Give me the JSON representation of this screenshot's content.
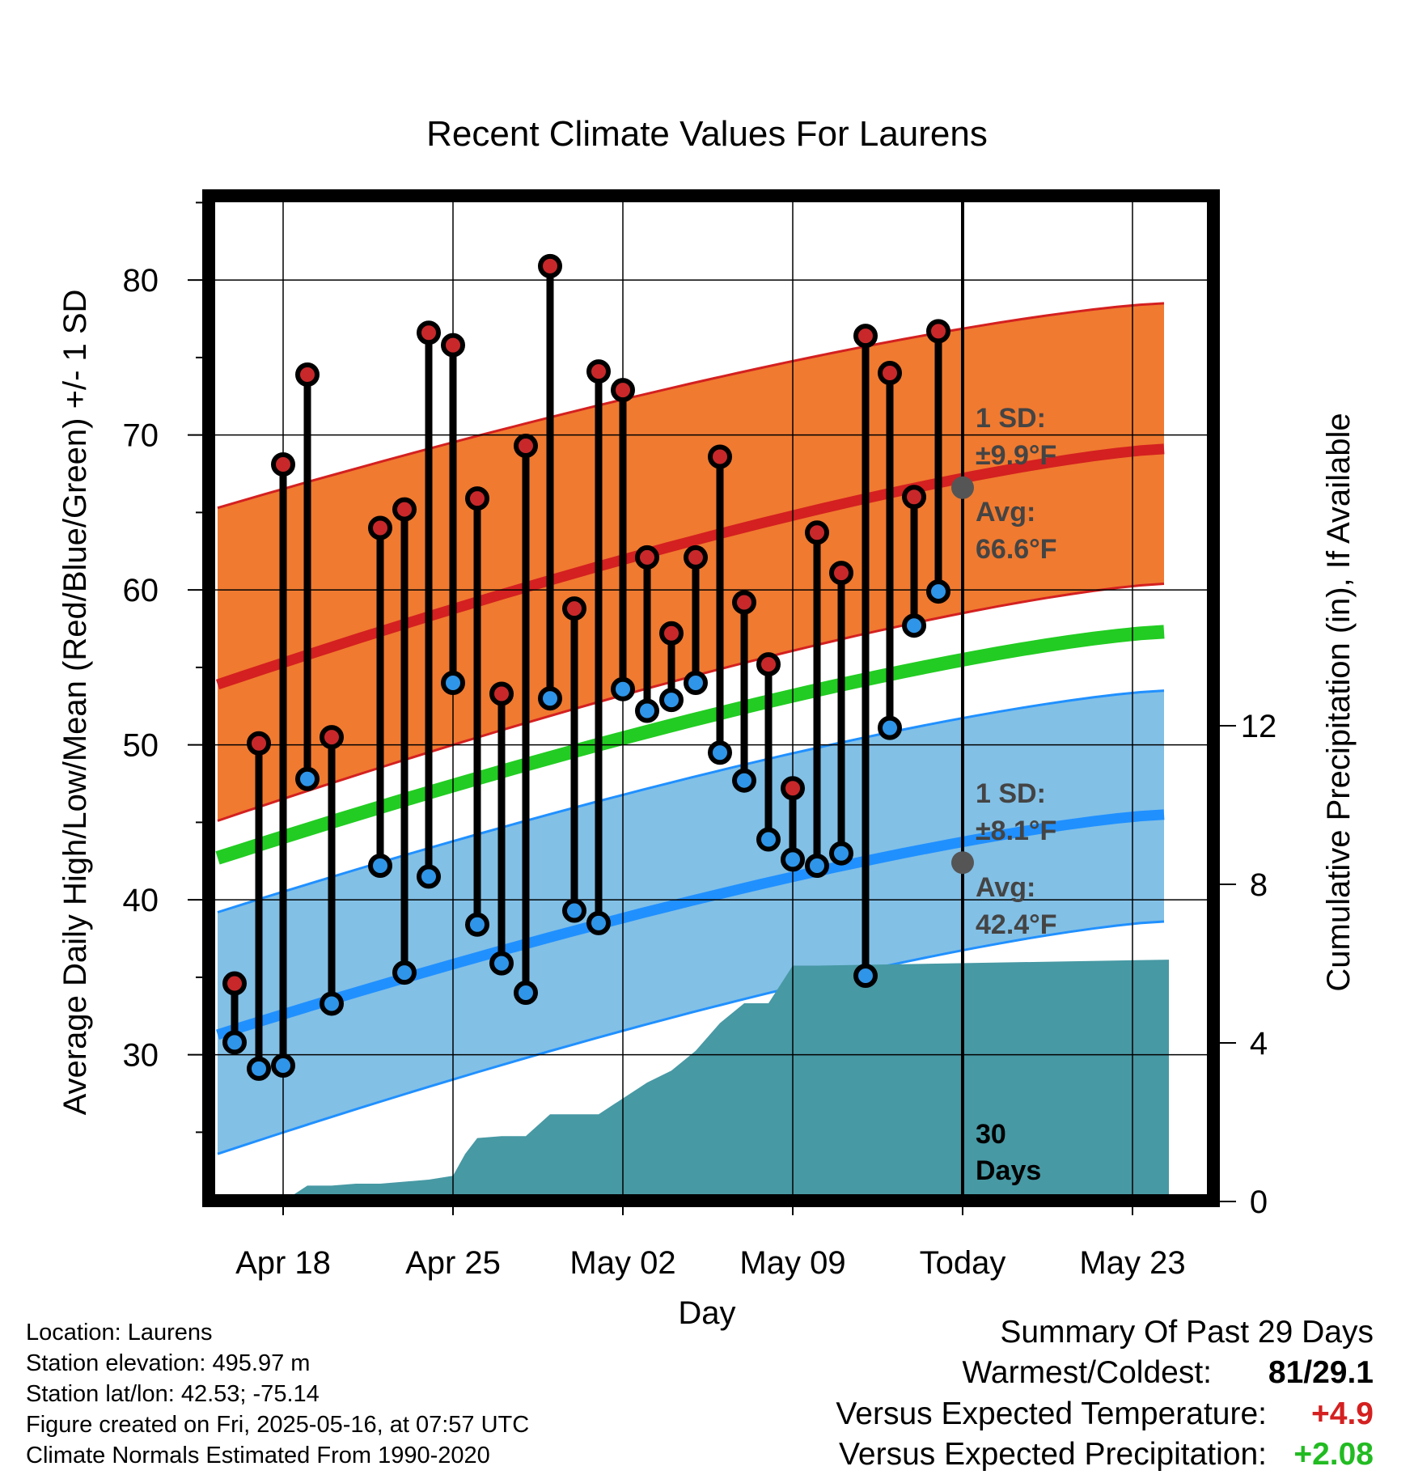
{
  "chart_data": {
    "type": "line",
    "title": "Recent Climate Values For Laurens",
    "xlabel": "Day",
    "ylabel": "Average Daily High/Low/Mean (Red/Blue/Green) +/- 1 SD",
    "y2label": "Cumulative Precipitation (in), If Available",
    "xlim": [
      -4.5,
      36.5
    ],
    "ylim": [
      21,
      85
    ],
    "y2lim": [
      -0.3,
      25
    ],
    "x_ticks": [
      {
        "x": 0,
        "label": "Apr 18"
      },
      {
        "x": 7,
        "label": "Apr 25"
      },
      {
        "x": 14,
        "label": "May 02"
      },
      {
        "x": 21,
        "label": "May 09"
      },
      {
        "x": 28,
        "label": "Today"
      },
      {
        "x": 35,
        "label": "May 23"
      }
    ],
    "y_ticks": [
      30,
      40,
      50,
      60,
      70,
      80
    ],
    "y2_ticks": [
      0,
      4,
      8,
      12
    ],
    "grid": true,
    "normals": {
      "x": [
        -2.7,
        36.3
      ],
      "high_avg": [
        53.9,
        69.1
      ],
      "high_upper": [
        65.3,
        78.5
      ],
      "high_lower": [
        45.1,
        60.4
      ],
      "mean": [
        42.7,
        57.3
      ],
      "low_avg": [
        31.3,
        45.5
      ],
      "low_upper": [
        39.2,
        53.5
      ],
      "low_lower": [
        23.6,
        38.6
      ]
    },
    "daily": [
      {
        "x": -2,
        "high": 34.6,
        "low": 30.8
      },
      {
        "x": -1,
        "high": 50.1,
        "low": 29.1
      },
      {
        "x": 0,
        "high": 68.1,
        "low": 29.3
      },
      {
        "x": 1,
        "high": 73.9,
        "low": 47.8
      },
      {
        "x": 2,
        "high": 50.5,
        "low": 33.3
      },
      {
        "x": 4,
        "high": 64.0,
        "low": 42.2
      },
      {
        "x": 5,
        "high": 65.2,
        "low": 35.3
      },
      {
        "x": 6,
        "high": 76.6,
        "low": 41.5
      },
      {
        "x": 7,
        "high": 75.8,
        "low": 54.0
      },
      {
        "x": 8,
        "high": 65.9,
        "low": 38.4
      },
      {
        "x": 9,
        "high": 53.3,
        "low": 35.9
      },
      {
        "x": 10,
        "high": 69.3,
        "low": 34.0
      },
      {
        "x": 11,
        "high": 80.9,
        "low": 53.0
      },
      {
        "x": 12,
        "high": 58.8,
        "low": 39.3
      },
      {
        "x": 13,
        "high": 74.1,
        "low": 38.5
      },
      {
        "x": 14,
        "high": 72.9,
        "low": 53.6
      },
      {
        "x": 15,
        "high": 62.1,
        "low": 52.2
      },
      {
        "x": 16,
        "high": 57.2,
        "low": 52.9
      },
      {
        "x": 17,
        "high": 62.1,
        "low": 54.0
      },
      {
        "x": 18,
        "high": 68.6,
        "low": 49.5
      },
      {
        "x": 19,
        "high": 59.2,
        "low": 47.7
      },
      {
        "x": 20,
        "high": 55.2,
        "low": 43.9
      },
      {
        "x": 21,
        "high": 47.2,
        "low": 42.6
      },
      {
        "x": 22,
        "high": 63.7,
        "low": 42.2
      },
      {
        "x": 23,
        "high": 61.1,
        "low": 43.0
      },
      {
        "x": 24,
        "high": 76.4,
        "low": 35.1
      },
      {
        "x": 25,
        "high": 74.0,
        "low": 51.1
      },
      {
        "x": 26,
        "high": 66.0,
        "low": 57.7
      },
      {
        "x": 27,
        "high": 76.7,
        "low": 59.9
      }
    ],
    "precip": {
      "x": [
        -3,
        -1.5,
        -1,
        -0.5,
        0,
        1,
        2,
        3,
        4,
        5,
        6,
        7,
        7.5,
        8,
        9,
        10,
        11,
        12,
        13,
        14,
        15,
        16,
        17,
        18,
        19,
        20,
        21,
        22,
        36.5
      ],
      "y": [
        0,
        0,
        0,
        0,
        0,
        0.4,
        0.4,
        0.45,
        0.45,
        0.5,
        0.55,
        0.65,
        1.2,
        1.6,
        1.65,
        1.65,
        2.2,
        2.2,
        2.2,
        2.6,
        3.0,
        3.3,
        3.8,
        4.5,
        5.0,
        5.0,
        5.95,
        5.95,
        6.1
      ]
    },
    "today_x": 28,
    "annotations": {
      "high_sd": "1 SD:",
      "high_sd_value": "±9.9°F",
      "high_avg": "Avg:",
      "high_avg_value": "66.6°F",
      "low_sd": "1 SD:",
      "low_sd_value": "±8.1°F",
      "low_avg": "Avg:",
      "low_avg_value": "42.4°F",
      "days_count": "30",
      "days_label": "Days"
    },
    "today_high_avg": 66.6,
    "today_low_avg": 42.4,
    "colors": {
      "high_band": "#f07a30",
      "high_line": "#d42020",
      "low_band": "#82c0e6",
      "low_line": "#2090ff",
      "mean_line": "#22cc22",
      "precip": "#4799a4",
      "high_dot": "#c8282a",
      "low_dot": "#2f95e8"
    }
  },
  "footer": {
    "location": "Location: Laurens",
    "elevation": "Station elevation: 495.97 m",
    "latlon": "Station lat/lon: 42.53; -75.14",
    "created": "Figure created on Fri, 2025-05-16, at 07:57 UTC",
    "normals": "Climate Normals Estimated From 1990-2020"
  },
  "summary": {
    "title": "Summary Of Past 29 Days",
    "warmest_coldest_label": "Warmest/Coldest:",
    "warmest_coldest_value": "81/29.1",
    "temp_label": "Versus Expected Temperature:",
    "temp_value": "+4.9",
    "precip_label": "Versus Expected Precipitation:",
    "precip_value": "+2.08",
    "temp_color": "#d42020",
    "precip_color": "#22bb22"
  }
}
